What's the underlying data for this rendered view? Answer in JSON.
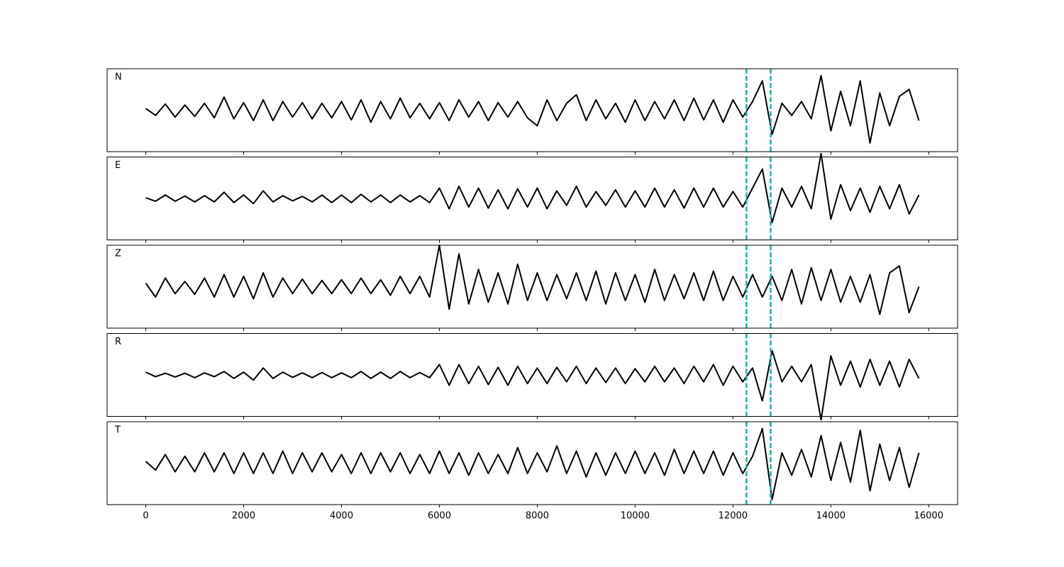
{
  "chart_data": {
    "type": "line",
    "layout": "stacked",
    "x": [
      0,
      200,
      400,
      600,
      800,
      1000,
      1200,
      1400,
      1600,
      1800,
      2000,
      2200,
      2400,
      2600,
      2800,
      3000,
      3200,
      3400,
      3600,
      3800,
      4000,
      4200,
      4400,
      4600,
      4800,
      5000,
      5200,
      5400,
      5600,
      5800,
      6000,
      6200,
      6400,
      6600,
      6800,
      7000,
      7200,
      7400,
      7600,
      7800,
      8000,
      8200,
      8400,
      8600,
      8800,
      9000,
      9200,
      9400,
      9600,
      9800,
      10000,
      10200,
      10400,
      10600,
      10800,
      11000,
      11200,
      11400,
      11600,
      11800,
      12000,
      12200,
      12400,
      12600,
      12800,
      13000,
      13200,
      13400,
      13600,
      13800,
      14000,
      14200,
      14400,
      14600,
      14800,
      15000,
      15200,
      15400,
      15600,
      15800
    ],
    "xlim": [
      -790,
      16590
    ],
    "xticks": [
      0,
      2000,
      4000,
      6000,
      8000,
      10000,
      12000,
      14000,
      16000
    ],
    "ylim": [
      -1.2,
      1.2
    ],
    "vlines": [
      12275,
      12770
    ],
    "vline_color": "#00bfbf",
    "vline_style": "dashed",
    "series": [
      {
        "name": "N",
        "color": "#000000",
        "values": [
          0.05,
          -0.15,
          0.18,
          -0.2,
          0.15,
          -0.18,
          0.2,
          -0.22,
          0.38,
          -0.25,
          0.22,
          -0.3,
          0.3,
          -0.3,
          0.25,
          -0.2,
          0.22,
          -0.25,
          0.2,
          -0.22,
          0.25,
          -0.28,
          0.3,
          -0.35,
          0.25,
          -0.25,
          0.35,
          -0.22,
          0.2,
          -0.25,
          0.22,
          -0.3,
          0.3,
          -0.2,
          0.25,
          -0.3,
          0.22,
          -0.2,
          0.25,
          -0.22,
          -0.45,
          0.3,
          -0.3,
          0.2,
          0.45,
          -0.3,
          0.3,
          -0.25,
          0.2,
          -0.35,
          0.3,
          -0.3,
          0.25,
          -0.25,
          0.3,
          -0.3,
          0.35,
          -0.28,
          0.3,
          -0.35,
          0.3,
          -0.2,
          0.25,
          0.85,
          -0.7,
          0.2,
          -0.15,
          0.25,
          -0.25,
          1.0,
          -0.6,
          0.55,
          -0.45,
          0.85,
          -0.95,
          0.5,
          -0.45,
          0.4,
          0.6,
          -0.3
        ]
      },
      {
        "name": "E",
        "color": "#000000",
        "values": [
          0.02,
          -0.08,
          0.1,
          -0.08,
          0.07,
          -0.1,
          0.08,
          -0.1,
          0.18,
          -0.12,
          0.1,
          -0.15,
          0.22,
          -0.1,
          0.08,
          -0.07,
          0.06,
          -0.1,
          0.1,
          -0.12,
          0.1,
          -0.12,
          0.12,
          -0.1,
          0.1,
          -0.12,
          0.1,
          -0.1,
          0.08,
          -0.12,
          0.3,
          -0.3,
          0.35,
          -0.25,
          0.3,
          -0.28,
          0.25,
          -0.3,
          0.28,
          -0.25,
          0.3,
          -0.3,
          0.22,
          -0.2,
          0.35,
          -0.25,
          0.2,
          -0.2,
          0.25,
          -0.25,
          0.22,
          -0.25,
          0.3,
          -0.25,
          0.25,
          -0.28,
          0.3,
          -0.25,
          0.3,
          -0.25,
          0.2,
          -0.25,
          0.3,
          0.85,
          -0.7,
          0.3,
          -0.25,
          0.35,
          -0.3,
          1.3,
          -0.6,
          0.4,
          -0.35,
          0.3,
          -0.4,
          0.35,
          -0.3,
          0.4,
          -0.45,
          0.1
        ]
      },
      {
        "name": "Z",
        "color": "#000000",
        "values": [
          0.1,
          -0.3,
          0.25,
          -0.2,
          0.15,
          -0.22,
          0.25,
          -0.3,
          0.35,
          -0.3,
          0.3,
          -0.35,
          0.4,
          -0.3,
          0.25,
          -0.2,
          0.22,
          -0.2,
          0.18,
          -0.2,
          0.2,
          -0.2,
          0.25,
          -0.2,
          0.2,
          -0.25,
          0.3,
          -0.2,
          0.3,
          -0.3,
          1.2,
          -0.65,
          0.95,
          -0.5,
          0.5,
          -0.45,
          0.4,
          -0.5,
          0.65,
          -0.4,
          0.4,
          -0.4,
          0.35,
          -0.35,
          0.4,
          -0.4,
          0.45,
          -0.5,
          0.4,
          -0.4,
          0.35,
          -0.45,
          0.5,
          -0.4,
          0.35,
          -0.35,
          0.4,
          -0.4,
          0.45,
          -0.4,
          0.3,
          -0.3,
          0.35,
          -0.3,
          0.3,
          -0.4,
          0.5,
          -0.5,
          0.55,
          -0.4,
          0.5,
          -0.45,
          0.3,
          -0.45,
          0.35,
          -0.8,
          0.4,
          0.6,
          -0.75,
          0.0
        ]
      },
      {
        "name": "R",
        "color": "#000000",
        "values": [
          0.08,
          -0.05,
          0.05,
          -0.06,
          0.05,
          -0.08,
          0.06,
          -0.05,
          0.1,
          -0.1,
          0.08,
          -0.15,
          0.2,
          -0.1,
          0.08,
          -0.07,
          0.06,
          -0.08,
          0.07,
          -0.08,
          0.06,
          -0.08,
          0.1,
          -0.1,
          0.08,
          -0.1,
          0.1,
          -0.08,
          0.07,
          -0.08,
          0.3,
          -0.3,
          0.3,
          -0.25,
          0.25,
          -0.28,
          0.22,
          -0.3,
          0.25,
          -0.25,
          0.2,
          -0.25,
          0.22,
          -0.2,
          0.25,
          -0.25,
          0.2,
          -0.22,
          0.2,
          -0.25,
          0.18,
          -0.2,
          0.25,
          -0.2,
          0.2,
          -0.25,
          0.25,
          -0.2,
          0.3,
          -0.3,
          0.25,
          -0.2,
          0.2,
          -0.75,
          0.7,
          -0.2,
          0.25,
          -0.2,
          0.3,
          -1.3,
          0.55,
          -0.3,
          0.4,
          -0.35,
          0.45,
          -0.3,
          0.4,
          -0.35,
          0.45,
          -0.1
        ]
      },
      {
        "name": "T",
        "color": "#000000",
        "values": [
          0.05,
          -0.2,
          0.25,
          -0.25,
          0.2,
          -0.25,
          0.3,
          -0.25,
          0.3,
          -0.3,
          0.3,
          -0.3,
          0.3,
          -0.3,
          0.35,
          -0.3,
          0.3,
          -0.25,
          0.3,
          -0.25,
          0.25,
          -0.3,
          0.3,
          -0.3,
          0.3,
          -0.25,
          0.3,
          -0.3,
          0.25,
          -0.3,
          0.35,
          -0.3,
          0.3,
          -0.35,
          0.3,
          -0.3,
          0.25,
          -0.3,
          0.45,
          -0.3,
          0.3,
          -0.25,
          0.5,
          -0.3,
          0.35,
          -0.4,
          0.3,
          -0.35,
          0.3,
          -0.3,
          0.35,
          -0.3,
          0.3,
          -0.35,
          0.4,
          -0.3,
          0.35,
          -0.3,
          0.35,
          -0.35,
          0.3,
          -0.3,
          0.2,
          1.0,
          -1.05,
          0.3,
          -0.35,
          0.4,
          -0.4,
          0.8,
          -0.5,
          0.6,
          -0.55,
          0.95,
          -0.8,
          0.55,
          -0.5,
          0.45,
          -0.7,
          0.3
        ]
      }
    ]
  }
}
